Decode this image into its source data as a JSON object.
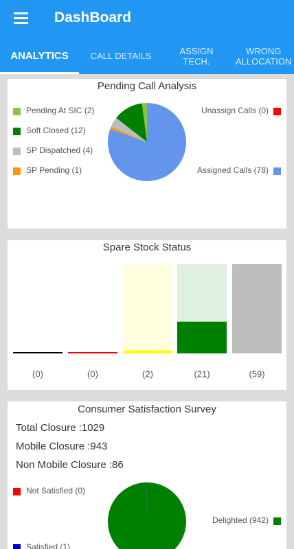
{
  "header": {
    "title": "DashBoard"
  },
  "tabs": [
    "ANALYTICS",
    "CALL DETAILS",
    "ASSIGN TECH.",
    "WRONG ALLOCATION"
  ],
  "chart_data": [
    {
      "type": "pie",
      "title": "Pending Call Analysis",
      "categories": [
        "Pending At SIC (2)",
        "Soft Closed (12)",
        "SP Dispatched (4)",
        "SP Pending (1)",
        "Unassign Calls (0)",
        "Assigned Calls (78)"
      ],
      "values": [
        2,
        12,
        4,
        1,
        0,
        78
      ],
      "colors": [
        "#8bc34a",
        "#008000",
        "#bdbdbd",
        "#ff9800",
        "#ff0000",
        "#6495ed"
      ]
    },
    {
      "type": "bar",
      "title": "Spare Stock Status",
      "values": [
        0,
        0,
        2,
        21,
        59
      ],
      "value_labels": [
        "(0)",
        "(0)",
        "(2)",
        "(21)",
        "(59)"
      ],
      "colors": [
        "#000000",
        "#ff0000",
        "#ffff00",
        "#008000",
        "#bdbdbd"
      ],
      "background_colors": [
        "#ffffff",
        "#ffffff",
        "#ffffe0",
        "#e0f0e0",
        "#c8c8c8"
      ],
      "ylim": [
        0,
        59
      ]
    },
    {
      "type": "pie",
      "title": "Consumer Satisfaction Survey",
      "lines": [
        "Total Closure :1029",
        "Mobile Closure :943",
        "Non Mobile Closure :86"
      ],
      "categories": [
        "Not Satisfied (0)",
        "Satisfied (1)",
        "Delighted (942)"
      ],
      "values": [
        0,
        1,
        942
      ],
      "colors": [
        "#ff0000",
        "#0000cd",
        "#008000"
      ]
    }
  ]
}
